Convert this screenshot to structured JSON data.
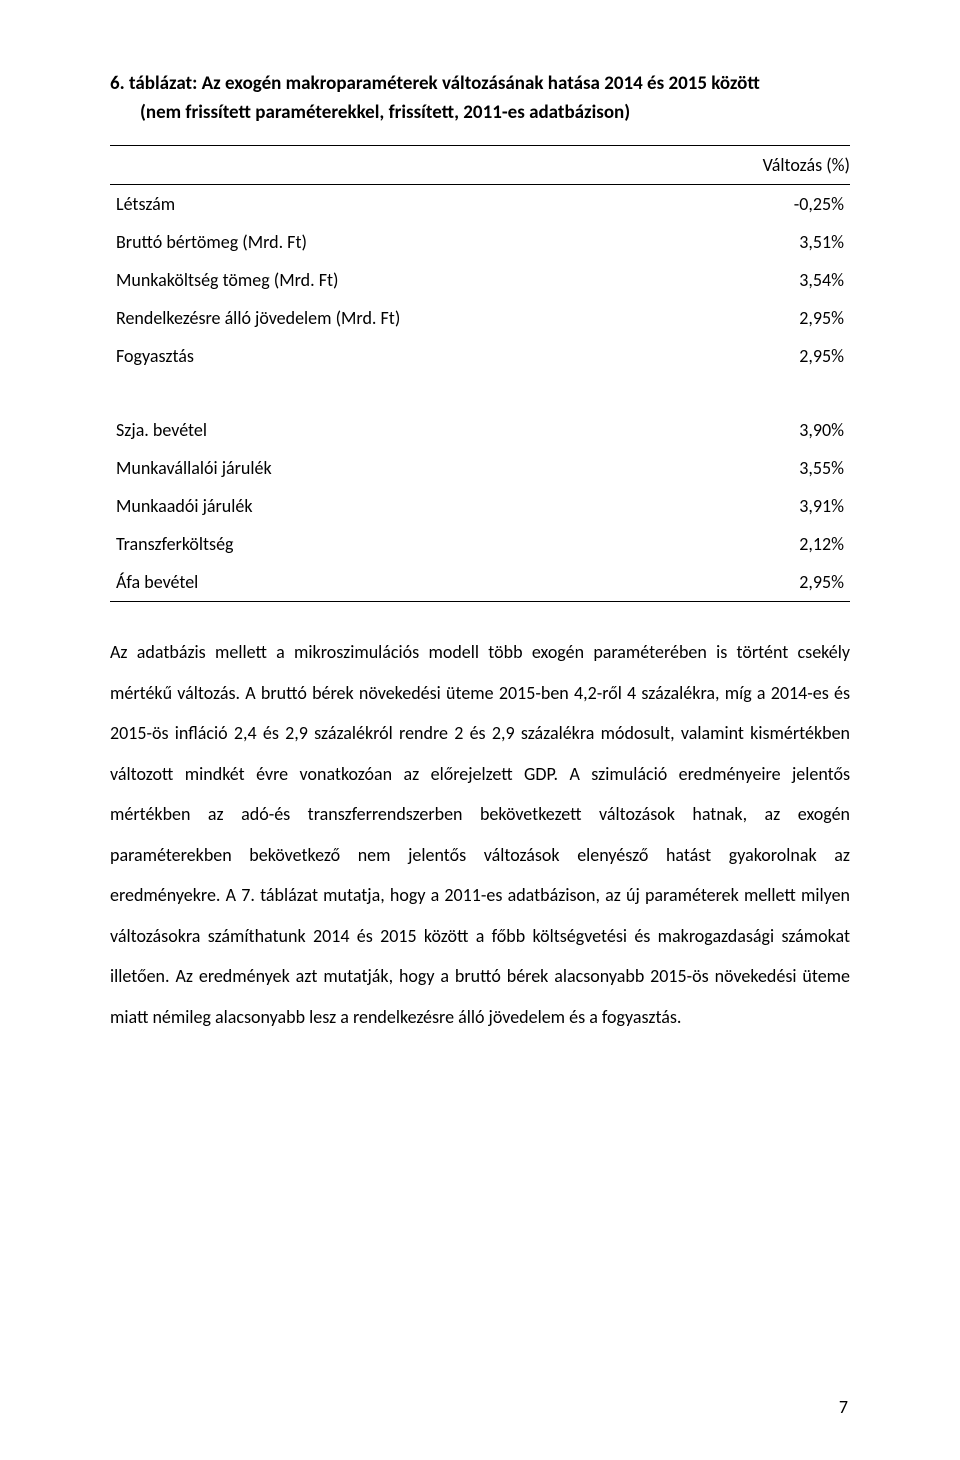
{
  "table": {
    "title_line1": "6.  táblázat: Az exogén makroparaméterek változásának hatása 2014 és 2015 között",
    "title_line2": "(nem frissített paraméterekkel, frissített, 2011-es adatbázison)",
    "header": "Változás (%)",
    "group1_rows": [
      {
        "label": "Létszám",
        "value": "-0,25%"
      },
      {
        "label": "Bruttó bértömeg (Mrd. Ft)",
        "value": "3,51%"
      },
      {
        "label": "Munkaköltség tömeg (Mrd. Ft)",
        "value": "3,54%"
      },
      {
        "label": "Rendelkezésre álló jövedelem (Mrd. Ft)",
        "value": "2,95%"
      },
      {
        "label": "Fogyasztás",
        "value": "2,95%"
      }
    ],
    "group2_rows": [
      {
        "label": "Szja. bevétel",
        "value": "3,90%"
      },
      {
        "label": "Munkavállalói járulék",
        "value": "3,55%"
      },
      {
        "label": "Munkaadói járulék",
        "value": "3,91%"
      },
      {
        "label": "Transzferköltség",
        "value": "2,12%"
      },
      {
        "label": "Áfa bevétel",
        "value": "2,95%"
      }
    ]
  },
  "body_paragraph": "Az adatbázis mellett a mikroszimulációs modell több exogén paraméterében is történt csekély mértékű változás. A bruttó bérek növekedési üteme 2015-ben 4,2-ről 4 százalékra, míg a 2014-es és 2015-ös infláció 2,4 és 2,9 százalékról rendre 2 és 2,9 százalékra módosult, valamint kismértékben változott mindkét évre vonatkozóan az előrejelzett GDP. A szimuláció eredményeire jelentős mértékben az adó-és transzferrendszerben bekövetkezett változások hatnak, az exogén paraméterekben bekövetkező nem jelentős változások elenyésző hatást gyakorolnak az eredményekre. A 7. táblázat mutatja, hogy a 2011-es adatbázison, az új paraméterek mellett milyen változásokra számíthatunk 2014 és 2015 között a főbb költségvetési és makrogazdasági számokat illetően. Az eredmények azt mutatják, hogy a bruttó bérek alacsonyabb 2015-ös növekedési üteme miatt némileg alacsonyabb lesz a rendelkezésre álló jövedelem és a fogyasztás.",
  "page_number": "7"
}
